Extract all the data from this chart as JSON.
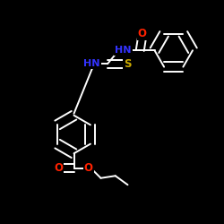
{
  "background_color": "#000000",
  "bond_color": "#ffffff",
  "atom_colors": {
    "N": "#3333ff",
    "O": "#ff2200",
    "S": "#ccaa00",
    "C": "#ffffff"
  },
  "figsize": [
    2.5,
    2.5
  ],
  "dpi": 100,
  "hex_r": 0.085,
  "lw": 1.4
}
